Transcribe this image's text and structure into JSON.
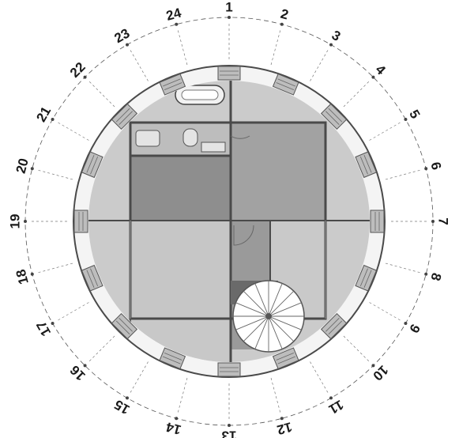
{
  "diagram": {
    "kind": "circular floor plan",
    "segment_labels": [
      "1",
      "2",
      "3",
      "4",
      "5",
      "6",
      "7",
      "8",
      "9",
      "10",
      "11",
      "12",
      "13",
      "14",
      "15",
      "16",
      "17",
      "18",
      "19",
      "20",
      "21",
      "22",
      "23",
      "24"
    ],
    "segment_count": 24,
    "window_count": 16,
    "colors": {
      "wall": "#4a4a4a",
      "ring_wall": "#f4f4f4",
      "floor_light": "#c9c9c9",
      "floor_mid": "#a3a3a3",
      "floor_dark": "#8e8e8e",
      "corridor": "#9b9b9b",
      "window_frame": "#bdbdbd",
      "label": "#1a1a1a"
    },
    "icons": [
      "bathtub-icon",
      "toilet-icon",
      "sink-icon",
      "spiral-staircase-icon",
      "door-swing-icon"
    ]
  }
}
